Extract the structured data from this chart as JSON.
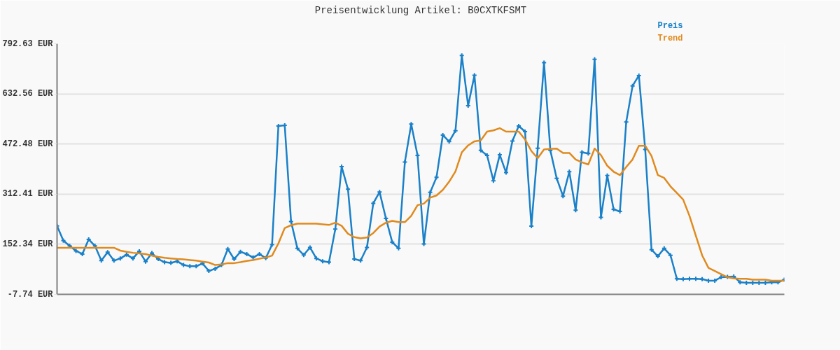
{
  "chart_data": {
    "type": "line",
    "title": "Preisentwicklung Artikel: B0CXTKFSMT",
    "categories": [
      null,
      null,
      null,
      null,
      null,
      null,
      null,
      null,
      null,
      null,
      null,
      null,
      null,
      null,
      null,
      null,
      null,
      null,
      null,
      null,
      null,
      null,
      null,
      null,
      null,
      null,
      null,
      null,
      null,
      null,
      null,
      null,
      null,
      null,
      null,
      null,
      null,
      null,
      null,
      null,
      null,
      null,
      null,
      null,
      null,
      null,
      null,
      null,
      null,
      null,
      null,
      null,
      null,
      null,
      null,
      null,
      null,
      null,
      null,
      null,
      null,
      null,
      null,
      null,
      null,
      null,
      null,
      null,
      null,
      null,
      null,
      null,
      null,
      null,
      null,
      null,
      null,
      null,
      null,
      null,
      null,
      null,
      null,
      null,
      null,
      null,
      null,
      null,
      null,
      null,
      null,
      null,
      null,
      null,
      null,
      null,
      null,
      null,
      null,
      null,
      null,
      null,
      null,
      null,
      null,
      null,
      null,
      null,
      null,
      null,
      null,
      null,
      null,
      null,
      null,
      null
    ],
    "ylim": [
      -7.74,
      792.63
    ],
    "yticks": [
      {
        "value": -7.74,
        "label": "-7.74 EUR"
      },
      {
        "value": 152.34,
        "label": "152.34 EUR"
      },
      {
        "value": 312.41,
        "label": "312.41 EUR"
      },
      {
        "value": 472.48,
        "label": "472.48 EUR"
      },
      {
        "value": 632.56,
        "label": "632.56 EUR"
      },
      {
        "value": 792.63,
        "label": "792.63 EUR"
      }
    ],
    "grid": "y",
    "tick_labels": "y",
    "series": [
      {
        "name": "Preis",
        "color": "#1a80c8",
        "marker": "cross",
        "line_style": "solid",
        "values": [
          211,
          164,
          147,
          131,
          121,
          168,
          147,
          100,
          127,
          100,
          107,
          119,
          107,
          130,
          97,
          124,
          105,
          95,
          93,
          98,
          86,
          82,
          82,
          91,
          67,
          74,
          86,
          137,
          105,
          128,
          121,
          110,
          121,
          108,
          151,
          530,
          532,
          225,
          139,
          118,
          142,
          107,
          98,
          95,
          201,
          400,
          328,
          105,
          100,
          142,
          283,
          319,
          235,
          159,
          139,
          415,
          536,
          436,
          153,
          318,
          366,
          501,
          480,
          515,
          755,
          595,
          692,
          452,
          436,
          355,
          438,
          381,
          482,
          530,
          512,
          210,
          459,
          732,
          452,
          363,
          306,
          384,
          261,
          446,
          442,
          743,
          238,
          372,
          264,
          257,
          543,
          658,
          691,
          455,
          135,
          114,
          139,
          117,
          42,
          41,
          42,
          42,
          41,
          36,
          36,
          47,
          48,
          49,
          31,
          29,
          29,
          29,
          29,
          31,
          31,
          39
        ]
      },
      {
        "name": "Trend",
        "color": "#e08a1e",
        "marker": "none",
        "line_style": "solid",
        "values": [
          141,
          141,
          141,
          141,
          141,
          141,
          141,
          141,
          141,
          141,
          132,
          128,
          125,
          123,
          121,
          116,
          112,
          109,
          107,
          105,
          104,
          102,
          100,
          97,
          94,
          86,
          88,
          92,
          92,
          95,
          99,
          102,
          106,
          110,
          116,
          155,
          204,
          213,
          218,
          218,
          218,
          218,
          216,
          214,
          221,
          211,
          186,
          175,
          171,
          174,
          188,
          209,
          221,
          227,
          223,
          223,
          243,
          277,
          282,
          301,
          308,
          326,
          352,
          385,
          446,
          468,
          481,
          484,
          512,
          516,
          523,
          512,
          512,
          512,
          487,
          450,
          427,
          455,
          457,
          458,
          444,
          444,
          423,
          414,
          407,
          458,
          437,
          403,
          384,
          373,
          399,
          423,
          467,
          467,
          434,
          373,
          364,
          337,
          316,
          295,
          243,
          180,
          117,
          77,
          67,
          57,
          47,
          43,
          42,
          42,
          39,
          39,
          39,
          36,
          36,
          36
        ]
      }
    ]
  }
}
